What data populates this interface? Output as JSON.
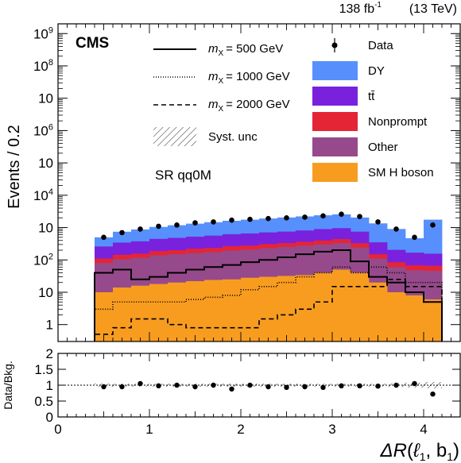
{
  "header": {
    "lumi": "138 fb",
    "lumi_exp": "-1",
    "energy": "(13 TeV)",
    "experiment": "CMS",
    "region": "SR qq0M"
  },
  "colors": {
    "DY": "#5790fc",
    "ttbar": "#7a21dd",
    "Nonprompt": "#e42536",
    "Other": "#964a8b",
    "Higgs": "#f89c20"
  },
  "chart_data": [
    {
      "type": "bar",
      "stacked": true,
      "log_y": true,
      "ylabel": "Events / 0.2",
      "ylim": [
        0.3,
        2000000000
      ],
      "xlim": [
        0,
        4.4
      ],
      "bin_edges": [
        0.4,
        0.6,
        0.8,
        1.0,
        1.2,
        1.4,
        1.6,
        1.8,
        2.0,
        2.2,
        2.4,
        2.6,
        2.8,
        3.0,
        3.2,
        3.4,
        3.6,
        3.8,
        4.0,
        4.2
      ],
      "y_tick_labels": [
        "1",
        "10",
        "10",
        "10",
        "10",
        "10",
        "10",
        "10",
        "10",
        "10"
      ],
      "y_tick_exps": [
        "",
        "",
        "2",
        "",
        "4",
        "",
        "6",
        "",
        "8",
        "9"
      ],
      "legend": {
        "data": "Data",
        "DY": "DY",
        "ttbar": "tt̄",
        "Nonprompt": "Nonprompt",
        "Other": "Other",
        "Higgs": "SM H boson",
        "syst": "Syst. unc",
        "sig_prefix": "m",
        "sig_sub": "X",
        "sig500": "= 500 GeV",
        "sig1000": "= 1000 GeV",
        "sig2000": "= 2000 GeV"
      },
      "series": [
        {
          "name": "SM H boson",
          "values": [
            10,
            14,
            16,
            18,
            20,
            22,
            24,
            25,
            28,
            30,
            32,
            34,
            40,
            50,
            40,
            20,
            10,
            8,
            6
          ]
        },
        {
          "name": "Other",
          "values": [
            70,
            90,
            100,
            120,
            130,
            140,
            150,
            170,
            180,
            200,
            220,
            240,
            260,
            280,
            200,
            90,
            50,
            40,
            40
          ]
        },
        {
          "name": "Nonprompt",
          "values": [
            30,
            40,
            40,
            50,
            50,
            60,
            60,
            70,
            70,
            80,
            80,
            90,
            100,
            110,
            90,
            40,
            25,
            20,
            20
          ]
        },
        {
          "name": "tt̄",
          "values": [
            150,
            200,
            220,
            260,
            280,
            300,
            330,
            360,
            380,
            400,
            420,
            450,
            500,
            520,
            420,
            200,
            120,
            100,
            90
          ]
        },
        {
          "name": "DY",
          "values": [
            240,
            400,
            500,
            600,
            700,
            800,
            900,
            1000,
            1100,
            1200,
            1300,
            1400,
            1500,
            1600,
            1300,
            1000,
            700,
            300,
            1600
          ]
        }
      ],
      "data_points": {
        "name": "Data",
        "values": [
          500,
          700,
          900,
          1100,
          1200,
          1400,
          1500,
          1700,
          1800,
          1900,
          2000,
          2100,
          2300,
          2600,
          2200,
          1500,
          900,
          500,
          1200
        ]
      },
      "signals": [
        {
          "name": "m_X = 500 GeV",
          "style": "solid",
          "values": [
            40,
            50,
            25,
            30,
            40,
            50,
            60,
            70,
            85,
            100,
            120,
            150,
            180,
            200,
            90,
            30,
            20,
            10,
            5
          ]
        },
        {
          "name": "m_X = 1000 GeV",
          "style": "dotted",
          "values": [
            3,
            5,
            5,
            5,
            5,
            6,
            7,
            8,
            12,
            15,
            20,
            30,
            40,
            60,
            40,
            60,
            40,
            20,
            20
          ]
        },
        {
          "name": "m_X = 2000 GeV",
          "style": "dashed",
          "values": [
            0.5,
            0.8,
            1.5,
            1.5,
            1.0,
            0.8,
            0.8,
            0.8,
            0.8,
            1.5,
            2.0,
            3.0,
            5.0,
            15,
            15,
            15,
            25,
            15,
            15
          ]
        }
      ]
    },
    {
      "type": "scatter",
      "ylabel": "Data/Bkg.",
      "xlabel_main": "ΔR",
      "xlabel_l": "ℓ",
      "xlabel_lsub": "1",
      "xlabel_b": "b",
      "xlabel_bsub": "1",
      "ylim": [
        0,
        2
      ],
      "yticks": [
        "0",
        "0.5",
        "1",
        "1.5",
        "2"
      ],
      "xticks": [
        "0",
        "1",
        "2",
        "3",
        "4"
      ],
      "x": [
        0.5,
        0.7,
        0.9,
        1.1,
        1.3,
        1.5,
        1.7,
        1.9,
        2.1,
        2.3,
        2.5,
        2.7,
        2.9,
        3.1,
        3.3,
        3.5,
        3.7,
        3.9,
        4.1
      ],
      "values": [
        0.95,
        0.95,
        1.05,
        0.98,
        1.0,
        0.95,
        1.0,
        0.88,
        1.0,
        0.95,
        0.93,
        0.95,
        0.93,
        0.98,
        0.98,
        0.97,
        1.0,
        1.05,
        0.72
      ]
    }
  ]
}
